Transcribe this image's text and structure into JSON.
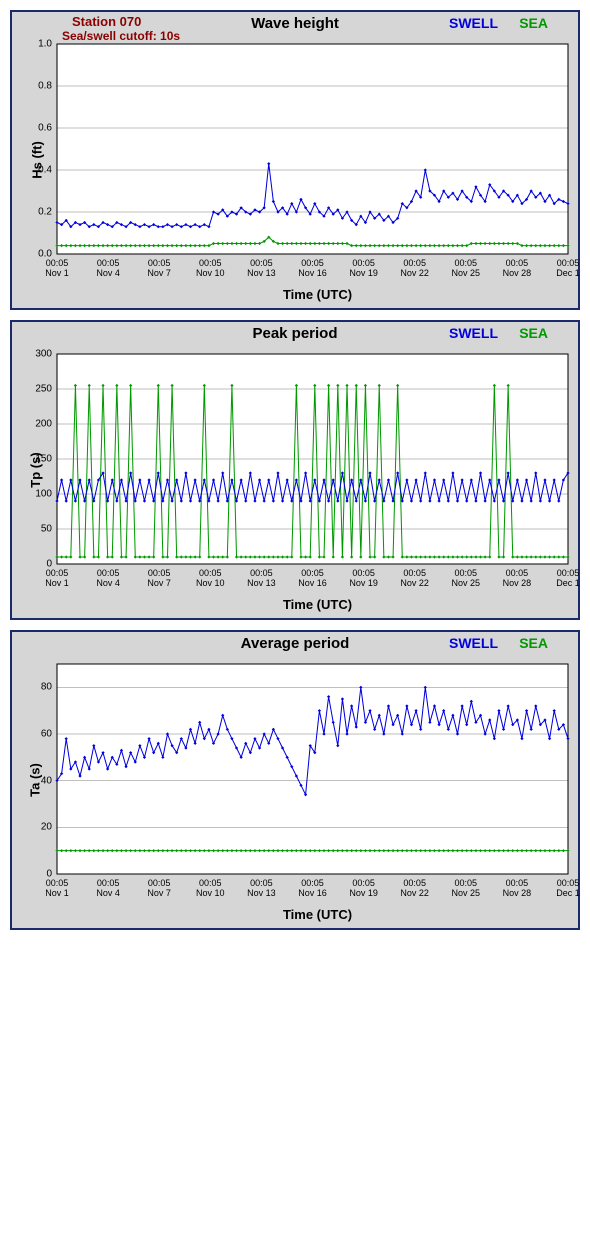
{
  "station_label": "Station 070",
  "cutoff_label": "Sea/swell cutoff: 10s",
  "legend": {
    "swell": "SWELL",
    "sea": "SEA"
  },
  "colors": {
    "panel_bg": "#d6d6d6",
    "panel_border": "#1a2a6b",
    "plot_bg": "#ffffff",
    "grid": "#808080",
    "swell": "#0000dd",
    "sea": "#009900",
    "station_text": "#8b0000"
  },
  "x_axis": {
    "label": "Time (UTC)",
    "time_label": "00:05",
    "dates": [
      "Nov 1",
      "Nov 4",
      "Nov 7",
      "Nov 10",
      "Nov 13",
      "Nov 16",
      "Nov 19",
      "Nov 22",
      "Nov 25",
      "Nov 28",
      "Dec 1"
    ],
    "xmin": 0,
    "xmax": 30
  },
  "charts": [
    {
      "id": "wave-height",
      "title": "Wave height",
      "ylabel": "Hs (ft)",
      "ymin": 0,
      "ymax": 1.0,
      "yticks": [
        0.0,
        0.2,
        0.4,
        0.6,
        0.8,
        1.0
      ],
      "grid_y": [
        0.0,
        0.2,
        0.4,
        0.6,
        0.8,
        1.0
      ],
      "show_station": true,
      "swell_series": [
        0.15,
        0.14,
        0.16,
        0.13,
        0.15,
        0.14,
        0.15,
        0.13,
        0.14,
        0.13,
        0.15,
        0.14,
        0.13,
        0.15,
        0.14,
        0.13,
        0.15,
        0.14,
        0.13,
        0.14,
        0.13,
        0.14,
        0.13,
        0.13,
        0.14,
        0.13,
        0.14,
        0.13,
        0.14,
        0.13,
        0.14,
        0.13,
        0.14,
        0.13,
        0.2,
        0.19,
        0.21,
        0.18,
        0.2,
        0.19,
        0.22,
        0.2,
        0.19,
        0.21,
        0.2,
        0.22,
        0.43,
        0.25,
        0.2,
        0.22,
        0.19,
        0.24,
        0.2,
        0.26,
        0.22,
        0.19,
        0.24,
        0.2,
        0.18,
        0.22,
        0.19,
        0.21,
        0.17,
        0.2,
        0.16,
        0.14,
        0.18,
        0.15,
        0.2,
        0.17,
        0.19,
        0.16,
        0.18,
        0.15,
        0.17,
        0.24,
        0.22,
        0.25,
        0.3,
        0.27,
        0.4,
        0.3,
        0.28,
        0.25,
        0.3,
        0.27,
        0.29,
        0.26,
        0.3,
        0.27,
        0.25,
        0.32,
        0.28,
        0.25,
        0.33,
        0.3,
        0.27,
        0.3,
        0.28,
        0.25,
        0.28,
        0.24,
        0.26,
        0.3,
        0.27,
        0.29,
        0.25,
        0.28,
        0.24,
        0.26,
        0.25,
        0.24
      ],
      "sea_series": [
        0.04,
        0.04,
        0.04,
        0.04,
        0.04,
        0.04,
        0.04,
        0.04,
        0.04,
        0.04,
        0.04,
        0.04,
        0.04,
        0.04,
        0.04,
        0.04,
        0.04,
        0.04,
        0.04,
        0.04,
        0.04,
        0.04,
        0.04,
        0.04,
        0.04,
        0.04,
        0.04,
        0.04,
        0.04,
        0.04,
        0.04,
        0.04,
        0.04,
        0.04,
        0.05,
        0.05,
        0.05,
        0.05,
        0.05,
        0.05,
        0.05,
        0.05,
        0.05,
        0.05,
        0.05,
        0.06,
        0.08,
        0.06,
        0.05,
        0.05,
        0.05,
        0.05,
        0.05,
        0.05,
        0.05,
        0.05,
        0.05,
        0.05,
        0.05,
        0.05,
        0.05,
        0.05,
        0.05,
        0.05,
        0.04,
        0.04,
        0.04,
        0.04,
        0.04,
        0.04,
        0.04,
        0.04,
        0.04,
        0.04,
        0.04,
        0.04,
        0.04,
        0.04,
        0.04,
        0.04,
        0.04,
        0.04,
        0.04,
        0.04,
        0.04,
        0.04,
        0.04,
        0.04,
        0.04,
        0.04,
        0.05,
        0.05,
        0.05,
        0.05,
        0.05,
        0.05,
        0.05,
        0.05,
        0.05,
        0.05,
        0.05,
        0.04,
        0.04,
        0.04,
        0.04,
        0.04,
        0.04,
        0.04,
        0.04,
        0.04,
        0.04,
        0.04
      ]
    },
    {
      "id": "peak-period",
      "title": "Peak period",
      "ylabel": "Tp (s)",
      "ymin": 0,
      "ymax": 300,
      "yticks": [
        0,
        50,
        100,
        150,
        200,
        250,
        300
      ],
      "grid_y": [
        0,
        50,
        100,
        150,
        200,
        250,
        300
      ],
      "show_station": false,
      "swell_series": [
        90,
        120,
        90,
        120,
        90,
        120,
        90,
        120,
        90,
        120,
        130,
        90,
        120,
        90,
        120,
        90,
        130,
        90,
        120,
        90,
        120,
        90,
        130,
        90,
        120,
        90,
        120,
        90,
        130,
        90,
        120,
        90,
        120,
        90,
        120,
        90,
        130,
        90,
        120,
        90,
        120,
        90,
        130,
        90,
        120,
        90,
        120,
        90,
        130,
        90,
        120,
        90,
        120,
        90,
        130,
        90,
        120,
        90,
        120,
        90,
        120,
        90,
        130,
        90,
        120,
        90,
        120,
        90,
        130,
        90,
        120,
        90,
        120,
        90,
        130,
        90,
        120,
        90,
        120,
        90,
        130,
        90,
        120,
        90,
        120,
        90,
        130,
        90,
        120,
        90,
        120,
        90,
        130,
        90,
        120,
        90,
        120,
        90,
        130,
        90,
        120,
        90,
        120,
        90,
        130,
        90,
        120,
        90,
        120,
        90,
        120,
        130
      ],
      "sea_series": [
        10,
        10,
        10,
        10,
        255,
        10,
        10,
        255,
        10,
        10,
        255,
        10,
        10,
        255,
        10,
        10,
        255,
        10,
        10,
        10,
        10,
        10,
        255,
        10,
        10,
        255,
        10,
        10,
        10,
        10,
        10,
        10,
        255,
        10,
        10,
        10,
        10,
        10,
        255,
        10,
        10,
        10,
        10,
        10,
        10,
        10,
        10,
        10,
        10,
        10,
        10,
        10,
        255,
        10,
        10,
        10,
        255,
        10,
        10,
        255,
        10,
        255,
        10,
        255,
        10,
        255,
        10,
        255,
        10,
        10,
        255,
        10,
        10,
        10,
        255,
        10,
        10,
        10,
        10,
        10,
        10,
        10,
        10,
        10,
        10,
        10,
        10,
        10,
        10,
        10,
        10,
        10,
        10,
        10,
        10,
        255,
        10,
        10,
        255,
        10,
        10,
        10,
        10,
        10,
        10,
        10,
        10,
        10,
        10,
        10,
        10,
        10
      ]
    },
    {
      "id": "average-period",
      "title": "Average period",
      "ylabel": "Ta (s)",
      "ymin": 0,
      "ymax": 90,
      "yticks": [
        0,
        20,
        40,
        60,
        80
      ],
      "grid_y": [
        0,
        20,
        40,
        60,
        80
      ],
      "show_station": false,
      "swell_series": [
        40,
        43,
        58,
        45,
        48,
        42,
        50,
        45,
        55,
        48,
        52,
        45,
        50,
        47,
        53,
        46,
        52,
        48,
        55,
        50,
        58,
        52,
        56,
        50,
        60,
        55,
        52,
        58,
        54,
        62,
        56,
        65,
        58,
        62,
        56,
        60,
        68,
        62,
        58,
        54,
        50,
        56,
        52,
        58,
        54,
        60,
        56,
        62,
        58,
        54,
        50,
        46,
        42,
        38,
        34,
        55,
        52,
        70,
        60,
        76,
        65,
        55,
        75,
        60,
        72,
        63,
        80,
        65,
        70,
        62,
        68,
        60,
        72,
        64,
        68,
        60,
        72,
        64,
        70,
        62,
        80,
        65,
        72,
        64,
        70,
        62,
        68,
        60,
        72,
        64,
        74,
        65,
        68,
        60,
        66,
        58,
        70,
        62,
        72,
        64,
        66,
        58,
        70,
        62,
        72,
        64,
        66,
        58,
        70,
        62,
        64,
        58
      ],
      "sea_series": [
        10,
        10,
        10,
        10,
        10,
        10,
        10,
        10,
        10,
        10,
        10,
        10,
        10,
        10,
        10,
        10,
        10,
        10,
        10,
        10,
        10,
        10,
        10,
        10,
        10,
        10,
        10,
        10,
        10,
        10,
        10,
        10,
        10,
        10,
        10,
        10,
        10,
        10,
        10,
        10,
        10,
        10,
        10,
        10,
        10,
        10,
        10,
        10,
        10,
        10,
        10,
        10,
        10,
        10,
        10,
        10,
        10,
        10,
        10,
        10,
        10,
        10,
        10,
        10,
        10,
        10,
        10,
        10,
        10,
        10,
        10,
        10,
        10,
        10,
        10,
        10,
        10,
        10,
        10,
        10,
        10,
        10,
        10,
        10,
        10,
        10,
        10,
        10,
        10,
        10,
        10,
        10,
        10,
        10,
        10,
        10,
        10,
        10,
        10,
        10,
        10,
        10,
        10,
        10,
        10,
        10,
        10,
        10,
        10,
        10,
        10,
        10
      ]
    }
  ]
}
